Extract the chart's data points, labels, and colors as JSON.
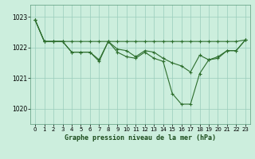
{
  "title": "Graphe pression niveau de la mer (hPa)",
  "bg_color": "#cceedd",
  "grid_color": "#99ccbb",
  "line_color": "#2d6e2d",
  "xlim": [
    -0.5,
    23.5
  ],
  "ylim": [
    1019.5,
    1023.4
  ],
  "yticks": [
    1020,
    1021,
    1022,
    1023
  ],
  "xticks": [
    0,
    1,
    2,
    3,
    4,
    5,
    6,
    7,
    8,
    9,
    10,
    11,
    12,
    13,
    14,
    15,
    16,
    17,
    18,
    19,
    20,
    21,
    22,
    23
  ],
  "line_flat": [
    1022.9,
    1022.2,
    1022.2,
    1022.2,
    1022.2,
    1022.2,
    1022.2,
    1022.2,
    1022.2,
    1022.2,
    1022.2,
    1022.2,
    1022.2,
    1022.2,
    1022.2,
    1022.2,
    1022.2,
    1022.2,
    1022.2,
    1022.2,
    1022.2,
    1022.2,
    1022.2,
    1022.25
  ],
  "line_mid": [
    1022.9,
    1022.2,
    1022.2,
    1022.2,
    1021.85,
    1021.85,
    1021.85,
    1021.6,
    1022.2,
    1021.95,
    1021.9,
    1021.7,
    1021.9,
    1021.85,
    1021.65,
    1021.5,
    1021.4,
    1021.2,
    1021.75,
    1021.6,
    1021.7,
    1021.9,
    1021.9,
    1022.25
  ],
  "line_deep": [
    1022.9,
    1022.2,
    1022.2,
    1022.2,
    1021.85,
    1021.85,
    1021.85,
    1021.55,
    1022.2,
    1021.85,
    1021.7,
    1021.65,
    1021.85,
    1021.65,
    1021.55,
    1020.5,
    1020.15,
    1020.15,
    1021.15,
    1021.6,
    1021.65,
    1021.9,
    1021.9,
    1022.25
  ]
}
